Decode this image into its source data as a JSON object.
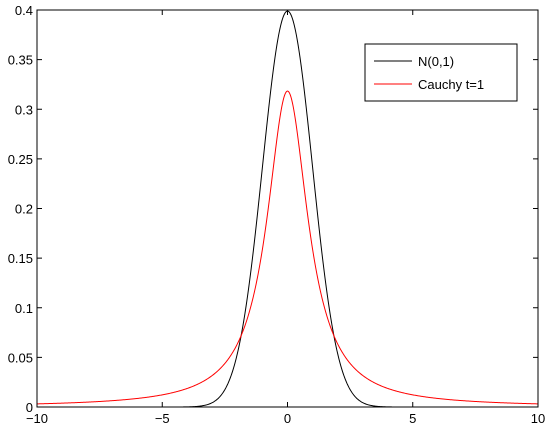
{
  "chart_data": {
    "type": "line",
    "title": "",
    "xlabel": "",
    "ylabel": "",
    "xlim": [
      -10,
      10
    ],
    "ylim": [
      0,
      0.4
    ],
    "xticks": [
      -10,
      -5,
      0,
      5,
      10
    ],
    "xtick_labels": [
      "−10",
      "−5",
      "0",
      "5",
      "10"
    ],
    "yticks": [
      0,
      0.05,
      0.1,
      0.15,
      0.2,
      0.25,
      0.3,
      0.35,
      0.4
    ],
    "ytick_labels": [
      "0",
      "0.05",
      "0.1",
      "0.15",
      "0.2",
      "0.25",
      "0.3",
      "0.35",
      "0.4"
    ],
    "grid": false,
    "legend_position": "top-right",
    "series": [
      {
        "name": "N(0,1)",
        "color": "#000000",
        "x": [
          -10,
          -5,
          -4,
          -3.5,
          -3,
          -2.5,
          -2,
          -1.5,
          -1,
          -0.5,
          0,
          0.5,
          1,
          1.5,
          2,
          2.5,
          3,
          3.5,
          4,
          5,
          10
        ],
        "y": [
          0,
          1.5e-06,
          0.00013,
          0.00087,
          0.0044,
          0.0175,
          0.054,
          0.1295,
          0.242,
          0.352,
          0.399,
          0.352,
          0.242,
          0.1295,
          0.054,
          0.0175,
          0.0044,
          0.00087,
          0.00013,
          1.5e-06,
          0
        ]
      },
      {
        "name": "Cauchy t=1",
        "color": "#ff0000",
        "x": [
          -10,
          -8,
          -6,
          -5,
          -4,
          -3,
          -2.5,
          -2,
          -1.5,
          -1,
          -0.5,
          0,
          0.5,
          1,
          1.5,
          2,
          2.5,
          3,
          4,
          5,
          6,
          8,
          10
        ],
        "y": [
          0.00315,
          0.0049,
          0.0086,
          0.0122,
          0.0187,
          0.0318,
          0.0439,
          0.0637,
          0.098,
          0.159,
          0.255,
          0.318,
          0.255,
          0.159,
          0.098,
          0.0637,
          0.0439,
          0.0318,
          0.0187,
          0.0122,
          0.0086,
          0.0049,
          0.00315
        ]
      }
    ]
  }
}
